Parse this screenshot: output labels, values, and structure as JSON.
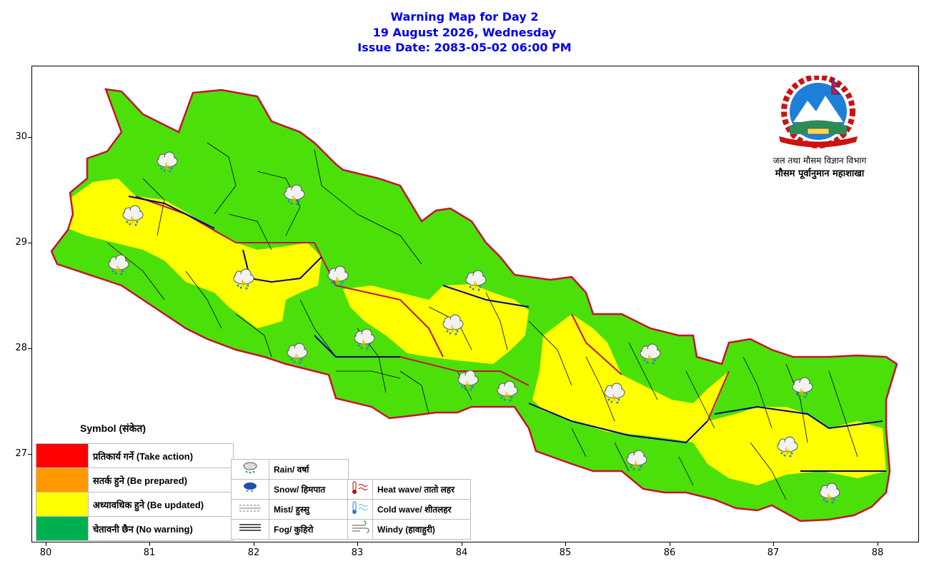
{
  "header": {
    "line1": "Warning Map for Day 2",
    "line2": "19 August 2026, Wednesday",
    "line3": "Issue Date: 2083-05-02 06:00 PM"
  },
  "axes": {
    "x_ticks": [
      "80",
      "81",
      "82",
      "83",
      "84",
      "85",
      "86",
      "87",
      "88"
    ],
    "y_ticks": [
      "30",
      "29",
      "28",
      "27"
    ]
  },
  "logo": {
    "org_line1": "जल तथा मौसम विज्ञान विभाग",
    "org_line2": "मौसम पूर्वानुमान महाशाखा"
  },
  "legend": {
    "title": "Symbol (संकेत)",
    "levels": [
      {
        "label": "प्रतिकार्य गर्ने (Take action)",
        "color": "#ff0000"
      },
      {
        "label": "सतर्क हुने (Be prepared)",
        "color": "#ff9900"
      },
      {
        "label": "अध्यावधिक हुने (Be updated)",
        "color": "#ffff00"
      },
      {
        "label": "चेतावनी छैन (No warning)",
        "color": "#00b050"
      }
    ],
    "symbols_left": [
      {
        "label": "Rain/ वर्षा",
        "icon": "rain-icon"
      },
      {
        "label": "Snow/ हिमपात",
        "icon": "snow-icon"
      },
      {
        "label": "Mist/ हुस्सु",
        "icon": "mist-icon"
      },
      {
        "label": "Fog/ कुहिरो",
        "icon": "fog-icon"
      }
    ],
    "symbols_right": [
      {
        "label": "Heat wave/ तातो लहर",
        "icon": "heat-wave-icon"
      },
      {
        "label": "Cold wave/ शीतलहर",
        "icon": "cold-wave-icon"
      },
      {
        "label": "Windy (हावाहुरी)",
        "icon": "windy-icon"
      }
    ]
  },
  "map_colors": {
    "no_warning_fill": "#4be00a",
    "be_updated_fill": "#ffff00",
    "province_border": "#c8102e",
    "outer_border": "#00008b"
  }
}
